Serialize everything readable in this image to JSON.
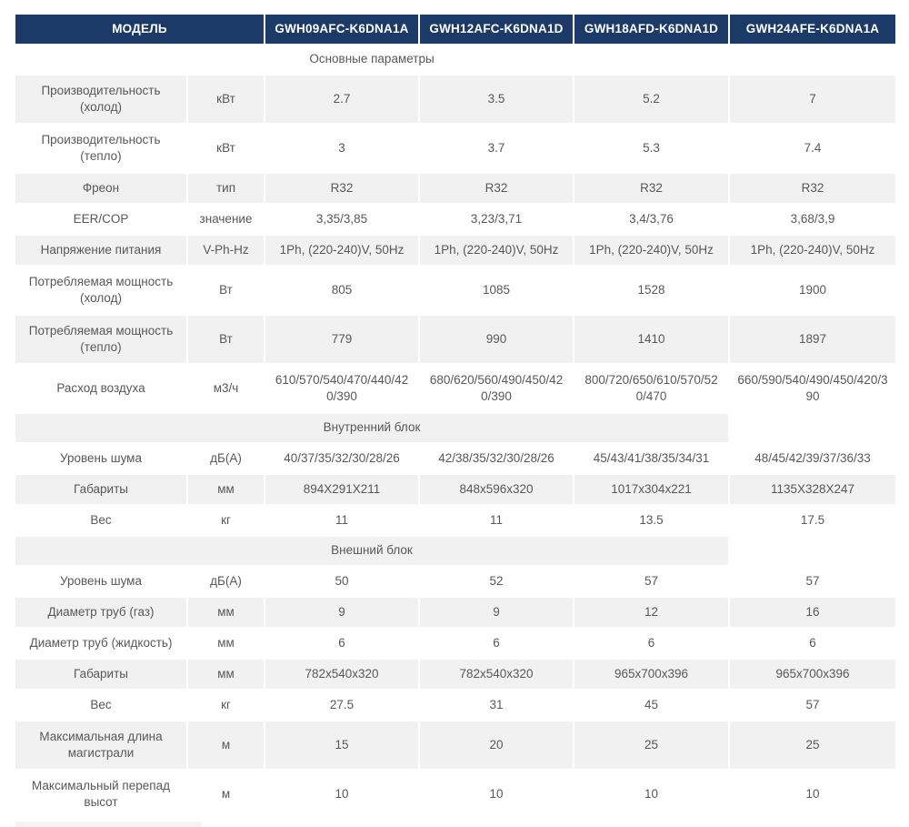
{
  "colors": {
    "header_bg": "#1c3a68",
    "header_text": "#ffffff",
    "row_stripe": "#f1f1f2",
    "body_text": "#57585a"
  },
  "table": {
    "header": {
      "model_label": "МОДЕЛЬ",
      "models": [
        "GWH09AFC-K6DNA1A",
        "GWH12AFC-K6DNA1D",
        "GWH18AFD-K6DNA1D",
        "GWH24AFE-K6DNA1A"
      ]
    },
    "sections": {
      "basic": "Основные параметры",
      "indoor": "Внутренний блок",
      "outdoor": "Внешний блок"
    },
    "rows": [
      {
        "label": "Производительность (холод)",
        "unit": "кВт",
        "v": [
          "2.7",
          "3.5",
          "5.2",
          "7"
        ]
      },
      {
        "label": "Производительность (тепло)",
        "unit": "кВт",
        "v": [
          "3",
          "3.7",
          "5.3",
          "7.4"
        ]
      },
      {
        "label": "Фреон",
        "unit": "тип",
        "v": [
          "R32",
          "R32",
          "R32",
          "R32"
        ]
      },
      {
        "label": "EER/COP",
        "unit": "значение",
        "v": [
          "3,35/3,85",
          "3,23/3,71",
          "3,4/3,76",
          "3,68/3,9"
        ]
      },
      {
        "label": "Напряжение питания",
        "unit": "V-Ph-Hz",
        "v": [
          "1Ph, (220-240)V, 50Hz",
          "1Ph, (220-240)V, 50Hz",
          "1Ph, (220-240)V, 50Hz",
          "1Ph, (220-240)V, 50Hz"
        ]
      },
      {
        "label": "Потребляемая мощность (холод)",
        "unit": "Вт",
        "v": [
          "805",
          "1085",
          "1528",
          "1900"
        ]
      },
      {
        "label": "Потребляемая мощность (тепло)",
        "unit": "Вт",
        "v": [
          "779",
          "990",
          "1410",
          "1897"
        ]
      },
      {
        "label": "Расход воздуха",
        "unit": "м3/ч",
        "v": [
          "610/570/540/470/440/420/390",
          "680/620/560/490/450/420/390",
          "800/720/650/610/570/520/470",
          "660/590/540/490/450/420/390"
        ]
      },
      {
        "label": "Уровень шума",
        "unit": "дБ(А)",
        "v": [
          "40/37/35/32/30/28/26",
          "42/38/35/32/30/28/26",
          "45/43/41/38/35/34/31",
          "48/45/42/39/37/36/33"
        ]
      },
      {
        "label": "Габариты",
        "unit": "мм",
        "v": [
          "894X291X211",
          "848x596x320",
          "1017x304x221",
          "1135X328X247"
        ]
      },
      {
        "label": "Вес",
        "unit": "кг",
        "v": [
          "11",
          "11",
          "13.5",
          "17.5"
        ]
      },
      {
        "label": "Уровень шума",
        "unit": "дБ(А)",
        "v": [
          "50",
          "52",
          "57",
          "57"
        ]
      },
      {
        "label": "Диаметр труб (газ)",
        "unit": "мм",
        "v": [
          "9",
          "9",
          "12",
          "16"
        ]
      },
      {
        "label": "Диаметр труб (жидкость)",
        "unit": "мм",
        "v": [
          "6",
          "6",
          "6",
          "6"
        ]
      },
      {
        "label": "Габариты",
        "unit": "мм",
        "v": [
          "782x540x320",
          "782x540x320",
          "965x700x396",
          "965x700x396"
        ]
      },
      {
        "label": "Вес",
        "unit": "кг",
        "v": [
          "27.5",
          "31",
          "45",
          "57"
        ]
      },
      {
        "label": "Максимальная длина магистрали",
        "unit": "м",
        "v": [
          "15",
          "20",
          "25",
          "25"
        ]
      },
      {
        "label": "Максимальный перепад высот",
        "unit": "м",
        "v": [
          "10",
          "10",
          "10",
          "10"
        ]
      }
    ]
  }
}
